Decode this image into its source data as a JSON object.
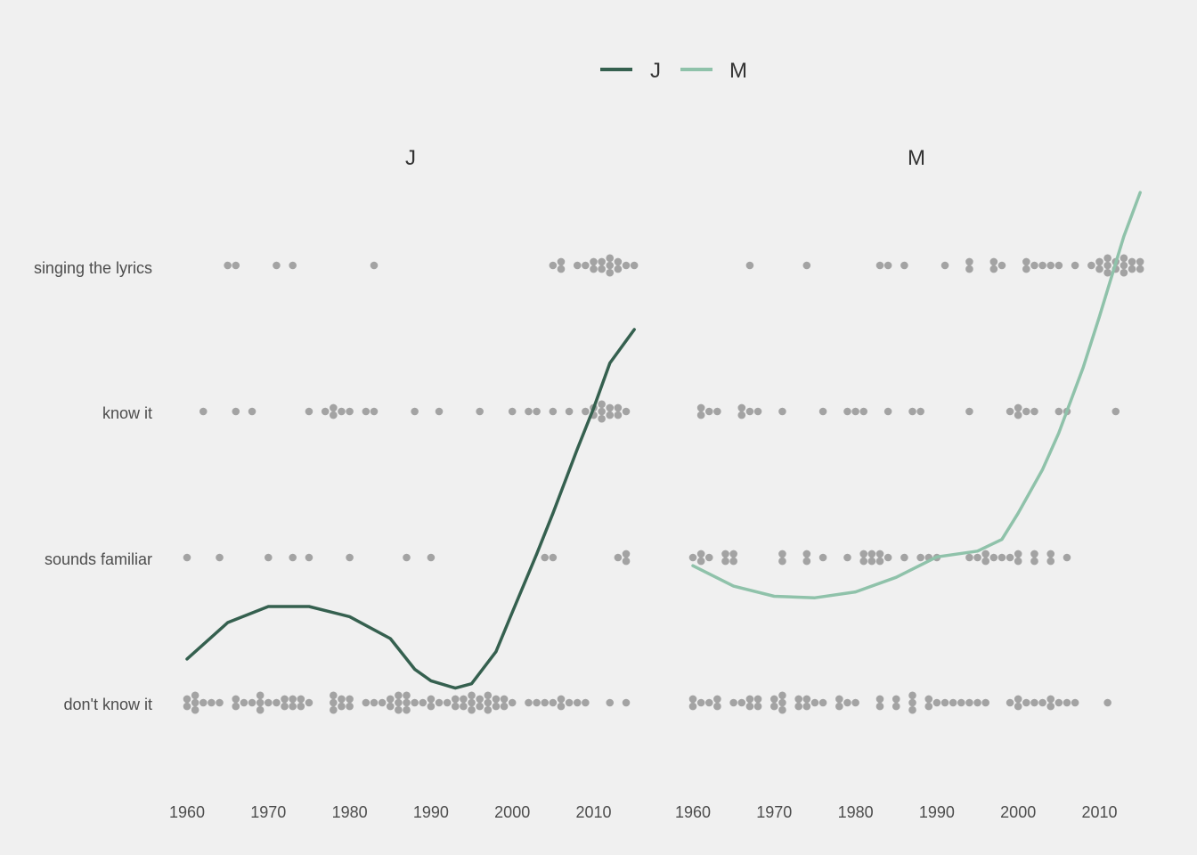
{
  "chart_data": {
    "type": "scatter",
    "title": "",
    "xlabel": "",
    "ylabel": "",
    "xlim": [
      1960,
      2015
    ],
    "x_ticks": [
      1960,
      1970,
      1980,
      1990,
      2000,
      2010
    ],
    "categories": [
      "don't know it",
      "sounds familiar",
      "know it",
      "singing the lyrics"
    ],
    "colors": {
      "J": "#35604f",
      "M": "#8fc2aa",
      "points": "#a3a3a3"
    },
    "legend": {
      "position": "top-center",
      "entries": [
        "J",
        "M"
      ]
    },
    "grid": false,
    "panels": [
      {
        "name": "J",
        "points": {
          "singing the lyrics": [
            1965,
            1966,
            1971,
            1973,
            1983,
            2005,
            2006,
            2006,
            2008,
            2009,
            2010,
            2010,
            2011,
            2011,
            2012,
            2012,
            2012,
            2013,
            2013,
            2014,
            2015
          ],
          "know it": [
            1962,
            1966,
            1968,
            1975,
            1977,
            1978,
            1978,
            1979,
            1980,
            1982,
            1983,
            1988,
            1991,
            1996,
            2000,
            2002,
            2003,
            2005,
            2007,
            2009,
            2010,
            2010,
            2011,
            2011,
            2011,
            2012,
            2012,
            2013,
            2013,
            2014
          ],
          "sounds familiar": [
            1960,
            1964,
            1970,
            1973,
            1975,
            1980,
            1987,
            1990,
            2004,
            2005,
            2013,
            2014,
            2014
          ],
          "don't know it": [
            1960,
            1960,
            1961,
            1961,
            1961,
            1962,
            1963,
            1964,
            1966,
            1966,
            1967,
            1968,
            1969,
            1969,
            1969,
            1970,
            1971,
            1972,
            1972,
            1973,
            1973,
            1974,
            1974,
            1975,
            1978,
            1978,
            1978,
            1979,
            1979,
            1980,
            1980,
            1982,
            1983,
            1984,
            1985,
            1985,
            1986,
            1986,
            1986,
            1987,
            1987,
            1987,
            1988,
            1989,
            1990,
            1990,
            1991,
            1992,
            1993,
            1993,
            1994,
            1994,
            1995,
            1995,
            1995,
            1996,
            1996,
            1997,
            1997,
            1997,
            1998,
            1998,
            1999,
            1999,
            2000,
            2002,
            2003,
            2004,
            2005,
            2006,
            2006,
            2007,
            2008,
            2009,
            2012,
            2014
          ]
        },
        "trend": {
          "x": [
            1960,
            1965,
            1970,
            1975,
            1980,
            1985,
            1988,
            1990,
            1993,
            1995,
            1998,
            2000,
            2003,
            2005,
            2008,
            2010,
            2012,
            2015
          ],
          "y": [
            0.3,
            0.55,
            0.66,
            0.66,
            0.59,
            0.44,
            0.23,
            0.15,
            0.1,
            0.13,
            0.35,
            0.62,
            1.02,
            1.3,
            1.74,
            2.02,
            2.33,
            2.56
          ]
        }
      },
      {
        "name": "M",
        "points": {
          "singing the lyrics": [
            1967,
            1974,
            1983,
            1984,
            1986,
            1991,
            1994,
            1994,
            1997,
            1997,
            1998,
            2001,
            2001,
            2002,
            2003,
            2004,
            2005,
            2007,
            2009,
            2010,
            2010,
            2011,
            2011,
            2011,
            2012,
            2012,
            2013,
            2013,
            2013,
            2014,
            2014,
            2015,
            2015
          ],
          "know it": [
            1961,
            1961,
            1962,
            1963,
            1966,
            1966,
            1967,
            1968,
            1971,
            1976,
            1979,
            1980,
            1981,
            1984,
            1987,
            1988,
            1994,
            1999,
            2000,
            2000,
            2001,
            2002,
            2005,
            2006,
            2012
          ],
          "sounds familiar": [
            1960,
            1961,
            1961,
            1962,
            1964,
            1964,
            1965,
            1965,
            1971,
            1971,
            1974,
            1974,
            1976,
            1979,
            1981,
            1981,
            1982,
            1982,
            1983,
            1983,
            1984,
            1986,
            1988,
            1989,
            1990,
            1994,
            1995,
            1996,
            1996,
            1997,
            1998,
            1999,
            2000,
            2000,
            2002,
            2002,
            2004,
            2004,
            2006
          ],
          "don't know it": [
            1960,
            1960,
            1961,
            1962,
            1963,
            1963,
            1965,
            1966,
            1967,
            1967,
            1968,
            1968,
            1970,
            1970,
            1971,
            1971,
            1971,
            1973,
            1973,
            1974,
            1974,
            1975,
            1976,
            1978,
            1978,
            1979,
            1980,
            1983,
            1983,
            1985,
            1985,
            1987,
            1987,
            1987,
            1989,
            1989,
            1990,
            1991,
            1992,
            1993,
            1994,
            1995,
            1996,
            1999,
            2000,
            2000,
            2001,
            2002,
            2003,
            2004,
            2004,
            2005,
            2006,
            2007,
            2011
          ]
        },
        "trend": {
          "x": [
            1960,
            1965,
            1970,
            1975,
            1980,
            1985,
            1990,
            1995,
            1998,
            2000,
            2003,
            2005,
            2008,
            2010,
            2013,
            2015
          ],
          "y": [
            0.94,
            0.8,
            0.73,
            0.72,
            0.76,
            0.86,
            1,
            1.04,
            1.12,
            1.3,
            1.6,
            1.85,
            2.3,
            2.65,
            3.2,
            3.5
          ]
        }
      }
    ]
  }
}
